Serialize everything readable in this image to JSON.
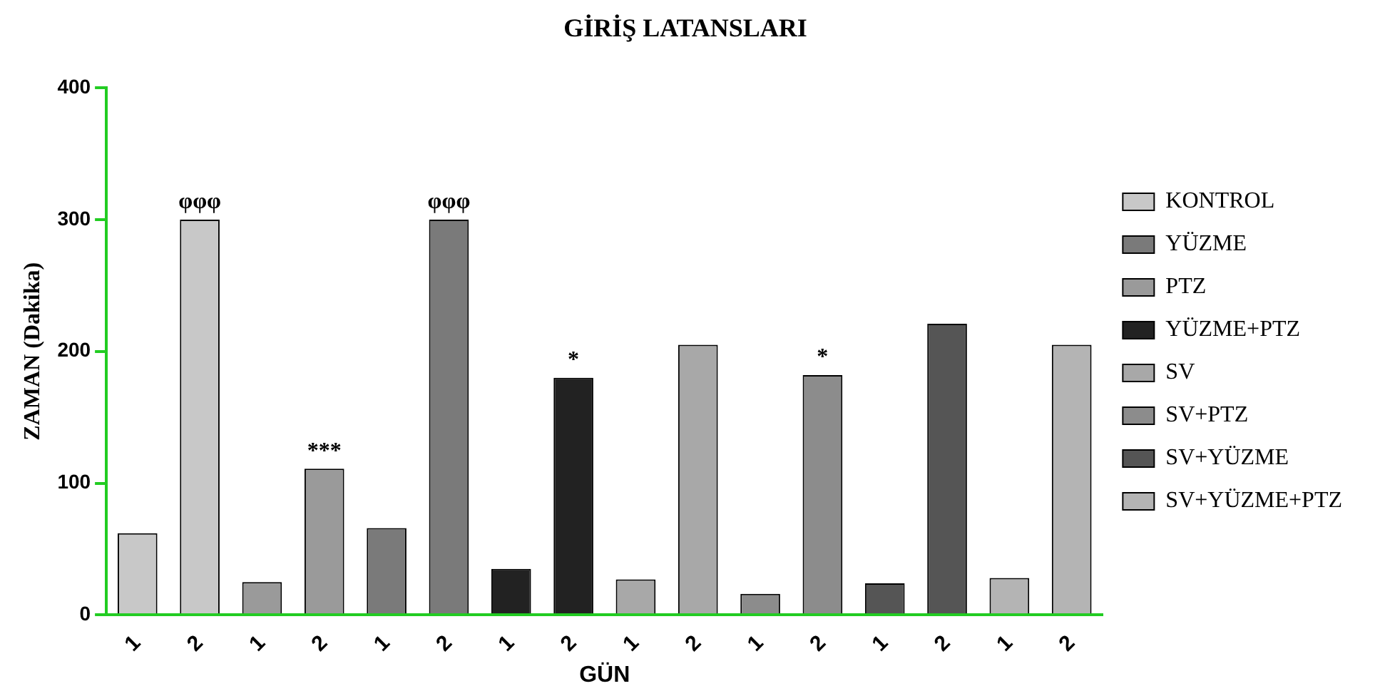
{
  "chart_data": {
    "type": "bar",
    "title": "GİRİŞ LATANSLARI",
    "xlabel": "GÜN",
    "ylabel": "ZAMAN (Dakika)",
    "categories": [
      "1",
      "2",
      "1",
      "2",
      "1",
      "2",
      "1",
      "2",
      "1",
      "2",
      "1",
      "2",
      "1",
      "2",
      "1",
      "2"
    ],
    "series": [
      {
        "name": "KONTROL",
        "color": "#c8c8c8",
        "values": [
          62,
          300,
          null,
          null,
          null,
          null,
          null,
          null,
          null,
          null,
          null,
          null,
          null,
          null,
          null,
          null
        ],
        "value_labels": [
          null,
          "φφφ",
          null,
          null,
          null,
          null,
          null,
          null,
          null,
          null,
          null,
          null,
          null,
          null,
          null,
          null
        ]
      },
      {
        "name": "YÜZME",
        "color": "#7a7a7a",
        "values": [
          null,
          null,
          null,
          null,
          66,
          300,
          null,
          null,
          null,
          null,
          null,
          null,
          null,
          null,
          null,
          null
        ],
        "value_labels": [
          null,
          null,
          null,
          null,
          null,
          "φφφ",
          null,
          null,
          null,
          null,
          null,
          null,
          null,
          null,
          null,
          null
        ]
      },
      {
        "name": "PTZ",
        "color": "#9a9a9a",
        "values": [
          null,
          null,
          25,
          111,
          null,
          null,
          null,
          null,
          null,
          null,
          null,
          null,
          null,
          null,
          null,
          null
        ],
        "value_labels": [
          null,
          null,
          null,
          "***",
          null,
          null,
          null,
          null,
          null,
          null,
          null,
          null,
          null,
          null,
          null,
          null
        ]
      },
      {
        "name": "YÜZME+PTZ",
        "color": "#222222",
        "values": [
          null,
          null,
          null,
          null,
          null,
          null,
          35,
          180,
          null,
          null,
          null,
          null,
          null,
          null,
          null,
          null
        ],
        "value_labels": [
          null,
          null,
          null,
          null,
          null,
          null,
          null,
          "*",
          null,
          null,
          null,
          null,
          null,
          null,
          null,
          null
        ]
      },
      {
        "name": "SV",
        "color": "#a8a8a8",
        "values": [
          null,
          null,
          null,
          null,
          null,
          null,
          null,
          null,
          27,
          205,
          null,
          null,
          null,
          null,
          null,
          null
        ]
      },
      {
        "name": "SV+PTZ",
        "color": "#8c8c8c",
        "values": [
          null,
          null,
          null,
          null,
          null,
          null,
          null,
          null,
          null,
          null,
          16,
          182,
          null,
          null,
          null,
          null
        ],
        "value_labels": [
          null,
          null,
          null,
          null,
          null,
          null,
          null,
          null,
          null,
          null,
          null,
          "*",
          null,
          null,
          null,
          null
        ]
      },
      {
        "name": "SV+YÜZME",
        "color": "#555555",
        "values": [
          null,
          null,
          null,
          null,
          null,
          null,
          null,
          null,
          null,
          null,
          null,
          null,
          24,
          221,
          null,
          null
        ]
      },
      {
        "name": "SV+YÜZME+PTZ",
        "color": "#b4b4b4",
        "values": [
          null,
          null,
          null,
          null,
          null,
          null,
          null,
          null,
          null,
          null,
          null,
          null,
          null,
          null,
          28,
          205
        ]
      }
    ],
    "ylim": [
      0,
      400
    ],
    "yticks": [
      0,
      100,
      200,
      300,
      400
    ],
    "grid": false,
    "legend": "right"
  }
}
